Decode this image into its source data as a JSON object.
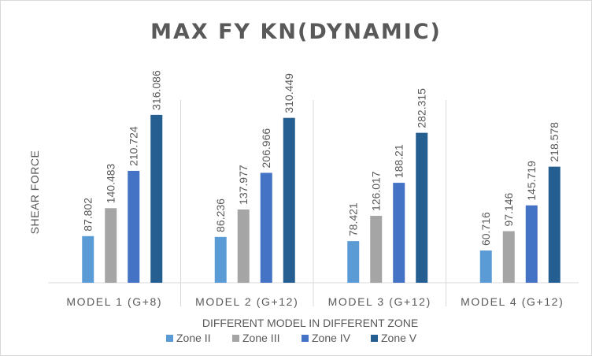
{
  "chart_data": {
    "type": "bar",
    "title": "MAX FY KN(DYNAMIC)",
    "xlabel": "DIFFERENT MODEL IN DIFFERENT ZONE",
    "ylabel": "SHEAR FORCE",
    "ylim": [
      0,
      350
    ],
    "grid": false,
    "legend_position": "bottom",
    "categories": [
      "MODEL 1 (G+8)",
      "MODEL 2 (G+12)",
      "MODEL 3 (G+12)",
      "MODEL 4 (G+12)"
    ],
    "series": [
      {
        "name": "Zone II",
        "color": "#5b9bd5",
        "values": [
          87.802,
          86.236,
          78.421,
          60.716
        ]
      },
      {
        "name": "Zone III",
        "color": "#a5a5a5",
        "values": [
          140.483,
          137.977,
          126.017,
          97.146
        ]
      },
      {
        "name": "Zone IV",
        "color": "#4472c4",
        "values": [
          210.724,
          206.966,
          188.21,
          145.719
        ]
      },
      {
        "name": "Zone V",
        "color": "#255e91",
        "values": [
          316.086,
          310.449,
          282.315,
          218.578
        ]
      }
    ]
  }
}
